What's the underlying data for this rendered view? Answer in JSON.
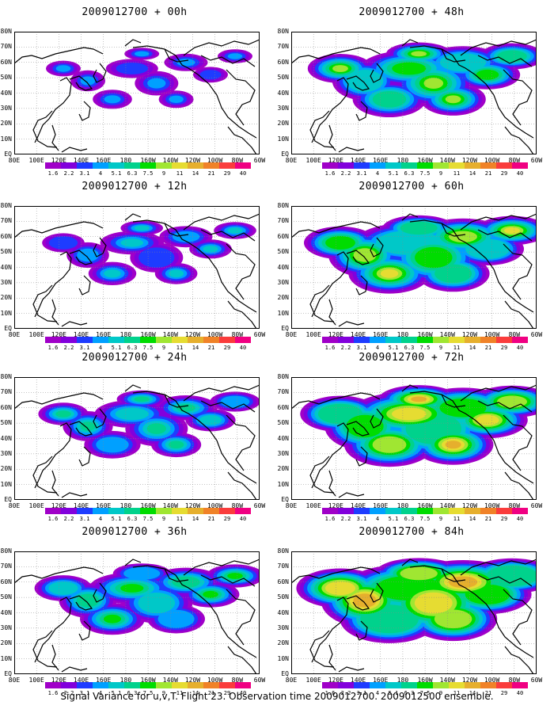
{
  "panels": [
    {
      "title": "2009012700 + 00h",
      "intensity": 0
    },
    {
      "title": "2009012700 + 48h",
      "intensity": 4
    },
    {
      "title": "2009012700 + 12h",
      "intensity": 1
    },
    {
      "title": "2009012700 + 60h",
      "intensity": 5
    },
    {
      "title": "2009012700 + 24h",
      "intensity": 2
    },
    {
      "title": "2009012700 + 72h",
      "intensity": 6
    },
    {
      "title": "2009012700 + 36h",
      "intensity": 3
    },
    {
      "title": "2009012700 + 84h",
      "intensity": 7
    }
  ],
  "y_labels": [
    "80N",
    "70N",
    "60N",
    "50N",
    "40N",
    "30N",
    "20N",
    "10N",
    "EQ"
  ],
  "x_labels": [
    "80E",
    "100E",
    "120E",
    "140E",
    "160E",
    "180",
    "160W",
    "140W",
    "120W",
    "100W",
    "80W",
    "60W"
  ],
  "colorbar": {
    "labels": [
      "1.6",
      "2.2",
      "3.1",
      "4",
      "5.1",
      "6.3",
      "7.5",
      "9",
      "11",
      "14",
      "21",
      "29",
      "40"
    ],
    "colors": [
      "#a000c8",
      "#8200dc",
      "#1e3cff",
      "#00a0ff",
      "#00c8c8",
      "#00d28c",
      "#00dc00",
      "#a0e632",
      "#e6dc32",
      "#e6af2d",
      "#f08228",
      "#fa3c3c",
      "#f00082"
    ]
  },
  "footer": "Signal Variance for u,v,T. Flight 23. Observation time 2009012700. 2009012500 ensemble."
}
